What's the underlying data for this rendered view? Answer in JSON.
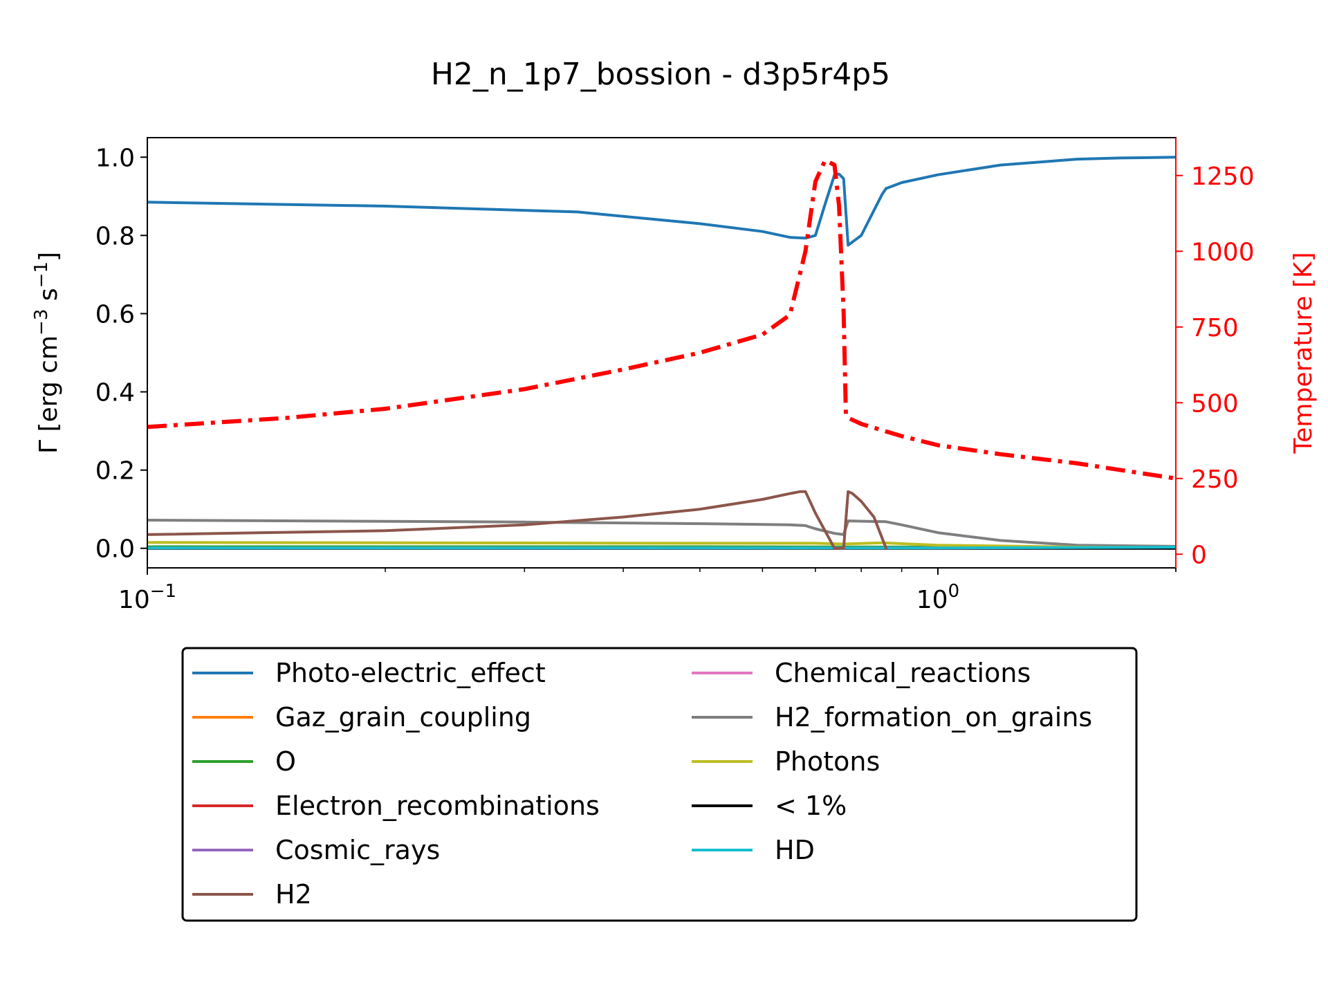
{
  "chart_data": {
    "type": "line",
    "title": "H2_n_1p7_bossion - d3p5r4p5",
    "x_scale": "log",
    "xlim": [
      0.1,
      2.0
    ],
    "x_ticks": [
      {
        "value": 0.1,
        "base": "10",
        "exp": "−1"
      },
      {
        "value": 1.0,
        "base": "10",
        "exp": "0"
      }
    ],
    "ylabel_left": {
      "prefix": "Γ [erg cm",
      "exp1": "−3",
      "mid": " s",
      "exp2": "−1",
      "suffix": "]"
    },
    "ylim_left": [
      -0.05,
      1.05
    ],
    "y_ticks_left": [
      "0.0",
      "0.2",
      "0.4",
      "0.6",
      "0.8",
      "1.0"
    ],
    "ylabel_right": "Temperature [K]",
    "ylim_right": [
      -45,
      1375
    ],
    "y_ticks_right": [
      "0",
      "250",
      "500",
      "750",
      "1000",
      "1250"
    ],
    "right_axis_color": "#ff0000",
    "legend_position": "below",
    "legend_columns": 2,
    "series": [
      {
        "name": "Photo-electric_effect",
        "color": "#1f77b4",
        "x": [
          0.1,
          0.2,
          0.35,
          0.5,
          0.6,
          0.65,
          0.68,
          0.7,
          0.72,
          0.74,
          0.75,
          0.76,
          0.77,
          0.8,
          0.85,
          0.86,
          0.9,
          1.0,
          1.2,
          1.5,
          1.7,
          2.0
        ],
        "y": [
          0.885,
          0.875,
          0.86,
          0.83,
          0.81,
          0.795,
          0.793,
          0.8,
          0.88,
          0.955,
          0.957,
          0.945,
          0.775,
          0.8,
          0.905,
          0.92,
          0.935,
          0.955,
          0.98,
          0.995,
          0.998,
          1.0
        ]
      },
      {
        "name": "Gaz_grain_coupling",
        "color": "#ff7f0e",
        "x": [
          0.1,
          0.5,
          1.0,
          2.0
        ],
        "y": [
          0.003,
          0.003,
          0.002,
          0.001
        ]
      },
      {
        "name": "O",
        "color": "#2ca02c",
        "x": [
          0.1,
          0.5,
          1.0,
          2.0
        ],
        "y": [
          0.004,
          0.004,
          0.003,
          0.002
        ]
      },
      {
        "name": "Electron_recombinations",
        "color": "#d62728",
        "x": [
          0.1,
          2.0
        ],
        "y": [
          0.001,
          0.001
        ]
      },
      {
        "name": "Cosmic_rays",
        "color": "#9467bd",
        "x": [
          0.1,
          2.0
        ],
        "y": [
          0.001,
          0.001
        ]
      },
      {
        "name": "H2",
        "color": "#8c564b",
        "x": [
          0.1,
          0.2,
          0.3,
          0.4,
          0.5,
          0.6,
          0.65,
          0.67,
          0.68,
          0.7,
          0.74,
          0.76,
          0.77,
          0.78,
          0.8,
          0.83,
          0.86
        ],
        "y": [
          0.035,
          0.045,
          0.06,
          0.08,
          0.1,
          0.125,
          0.14,
          0.145,
          0.145,
          0.09,
          0.0,
          0.0,
          0.145,
          0.14,
          0.12,
          0.08,
          0.0
        ]
      },
      {
        "name": "Chemical_reactions",
        "color": "#e377c2",
        "x": [
          0.1,
          2.0
        ],
        "y": [
          0.0,
          0.0
        ]
      },
      {
        "name": "H2_formation_on_grains",
        "color": "#7f7f7f",
        "x": [
          0.1,
          0.3,
          0.5,
          0.65,
          0.68,
          0.7,
          0.74,
          0.76,
          0.77,
          0.86,
          0.9,
          1.0,
          1.2,
          1.5,
          2.0
        ],
        "y": [
          0.072,
          0.067,
          0.063,
          0.06,
          0.058,
          0.05,
          0.038,
          0.035,
          0.07,
          0.068,
          0.06,
          0.04,
          0.02,
          0.008,
          0.005
        ]
      },
      {
        "name": "Photons",
        "color": "#bcbd22",
        "x": [
          0.1,
          0.5,
          0.7,
          0.76,
          0.85,
          1.0,
          1.5,
          2.0
        ],
        "y": [
          0.015,
          0.013,
          0.013,
          0.011,
          0.014,
          0.008,
          0.003,
          0.002
        ]
      },
      {
        "name": "< 1%",
        "color": "#000000",
        "x": [
          0.1,
          2.0
        ],
        "y": [
          0.0,
          0.0
        ]
      },
      {
        "name": "HD",
        "color": "#17becf",
        "x": [
          0.1,
          0.5,
          1.0,
          1.5,
          2.0
        ],
        "y": [
          0.001,
          0.001,
          0.001,
          0.002,
          0.003
        ]
      }
    ],
    "temperature_series": {
      "color": "#ff0000",
      "style": "dash-dot",
      "axis": "right",
      "x": [
        0.1,
        0.15,
        0.2,
        0.3,
        0.4,
        0.5,
        0.6,
        0.65,
        0.68,
        0.7,
        0.72,
        0.74,
        0.75,
        0.76,
        0.765,
        0.77,
        0.8,
        0.9,
        1.0,
        1.2,
        1.5,
        2.0
      ],
      "y": [
        420,
        450,
        480,
        545,
        610,
        665,
        725,
        790,
        1000,
        1230,
        1300,
        1285,
        1150,
        800,
        460,
        450,
        430,
        390,
        360,
        330,
        300,
        250
      ]
    }
  }
}
